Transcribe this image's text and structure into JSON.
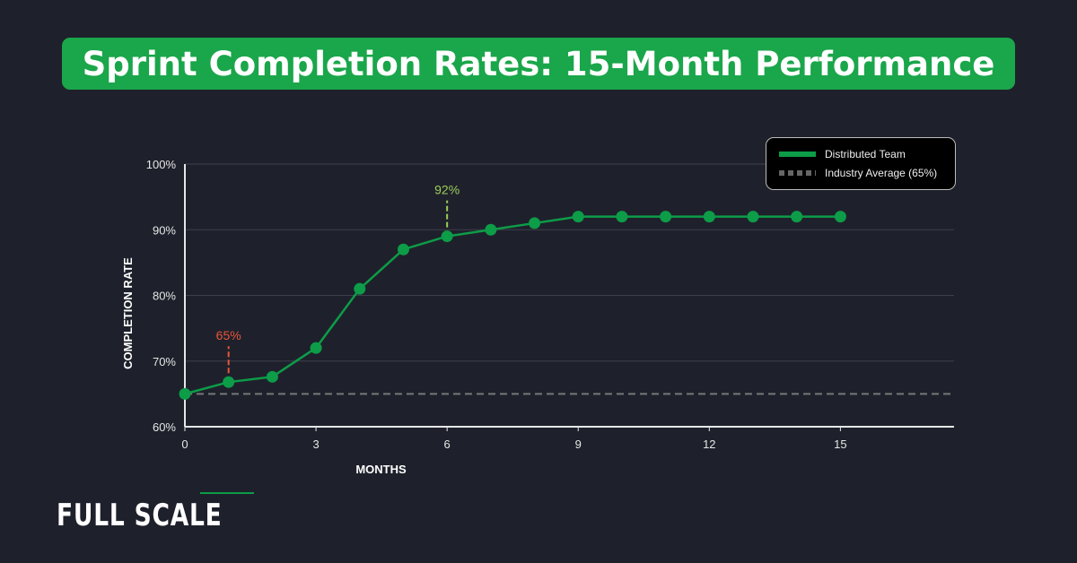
{
  "title": "Sprint Completion Rates: 15-Month Performance",
  "logo": "FULL SCALE",
  "colors": {
    "background": "#1e212b",
    "title_bg": "#1aa64a",
    "series": "#0d9c48",
    "average": "#777777",
    "annotation_low": "#e8553a",
    "annotation_high": "#9ccc5a"
  },
  "chart_data": {
    "type": "line",
    "xlabel": "MONTHS",
    "ylabel": "COMPLETION RATE",
    "xlim": [
      0,
      17.6
    ],
    "ylim": [
      60,
      100
    ],
    "xticks": [
      0,
      3,
      6,
      9,
      12,
      15
    ],
    "xtick_labels": [
      "0",
      "3",
      "6",
      "9",
      "12",
      "15"
    ],
    "yticks": [
      60,
      70,
      80,
      90,
      100
    ],
    "ytick_labels": [
      "60%",
      "70%",
      "80%",
      "90%",
      "100%"
    ],
    "grid": "horizontal",
    "legend_position": "top-right",
    "series": [
      {
        "name": "Distributed Team",
        "x": [
          0,
          1,
          2,
          3,
          4,
          5,
          6,
          7,
          8,
          9,
          10,
          11,
          12,
          13,
          14,
          15
        ],
        "values": [
          65,
          66.8,
          67.6,
          72,
          81,
          87,
          89,
          90,
          91,
          92,
          92,
          92,
          92,
          92,
          92,
          92
        ]
      }
    ],
    "reference_line": {
      "name": "Industry Average (65%)",
      "value": 65,
      "style": "dashed"
    },
    "annotations": [
      {
        "text": "65%",
        "x": 1,
        "color": "#e8553a"
      },
      {
        "text": "92%",
        "x": 6,
        "color": "#9ccc5a"
      }
    ]
  }
}
